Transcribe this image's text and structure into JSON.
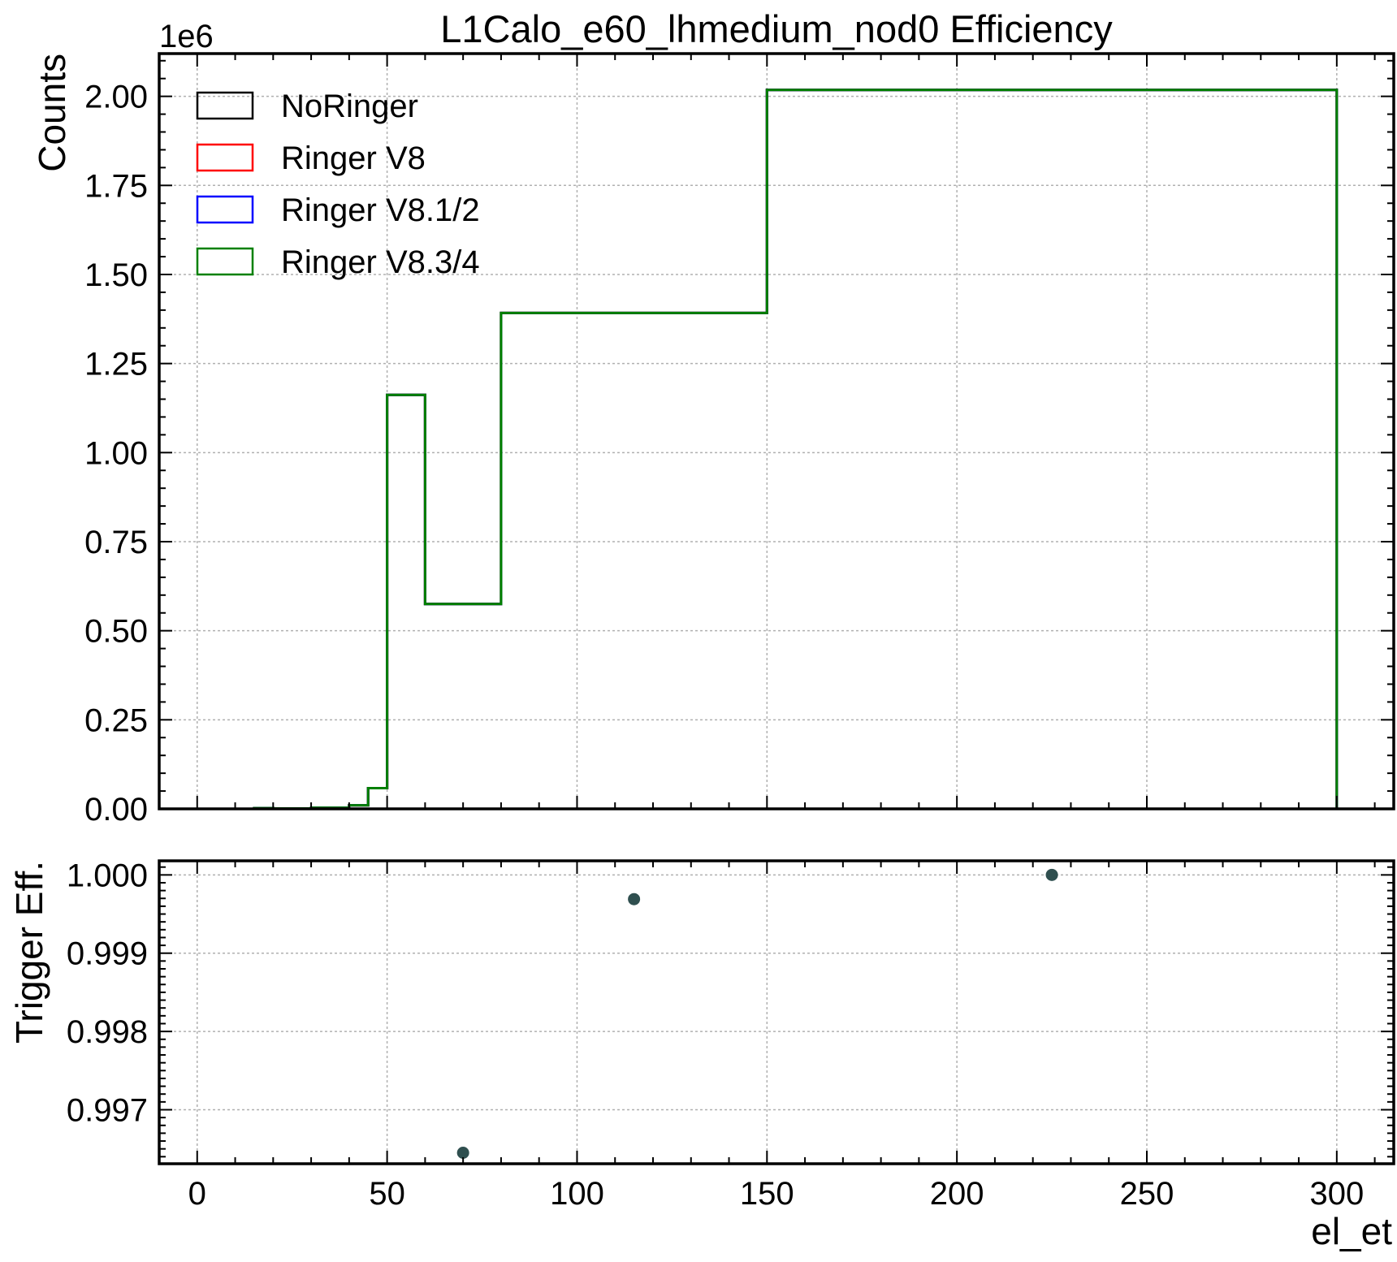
{
  "chart_data": [
    {
      "type": "line",
      "subtype": "step-histogram",
      "title": "L1Calo_e60_lhmedium_nod0 Efficiency",
      "ylabel": "Counts",
      "xlabel": "",
      "y_offset_label": "1e6",
      "xlim": [
        -10,
        315
      ],
      "ylim": [
        0,
        2.12
      ],
      "y_scale": 1000000,
      "xticks": [
        0,
        50,
        100,
        150,
        200,
        250,
        300
      ],
      "yticks": [
        0.0,
        0.25,
        0.5,
        0.75,
        1.0,
        1.25,
        1.5,
        1.75,
        2.0
      ],
      "ytick_labels": [
        "0.00",
        "0.25",
        "0.50",
        "0.75",
        "1.00",
        "1.25",
        "1.50",
        "1.75",
        "2.00"
      ],
      "grid": true,
      "legend_position": "top-left",
      "bin_edges": [
        15,
        20,
        30,
        40,
        45,
        50,
        60,
        80,
        150,
        300
      ],
      "series": [
        {
          "name": "NoRinger",
          "color": "#000000",
          "values": [
            0.002,
            0.001,
            0.003,
            0.01,
            0.058,
            1.162,
            0.575,
            1.392,
            2.018
          ]
        },
        {
          "name": "Ringer V8",
          "color": "#ff0000",
          "values": [
            0.002,
            0.001,
            0.003,
            0.01,
            0.058,
            1.162,
            0.575,
            1.392,
            2.018
          ]
        },
        {
          "name": "Ringer V8.1/2",
          "color": "#0000ff",
          "values": [
            0.002,
            0.001,
            0.003,
            0.01,
            0.058,
            1.162,
            0.575,
            1.392,
            2.018
          ]
        },
        {
          "name": "Ringer V8.3/4",
          "color": "#008000",
          "values": [
            0.002,
            0.001,
            0.003,
            0.01,
            0.058,
            1.162,
            0.575,
            1.392,
            2.018
          ]
        }
      ]
    },
    {
      "type": "scatter",
      "ylabel": "Trigger Eff.",
      "xlabel": "el_et",
      "xlim": [
        -10,
        315
      ],
      "ylim": [
        0.99631,
        1.00018
      ],
      "xticks": [
        0,
        50,
        100,
        150,
        200,
        250,
        300
      ],
      "xtick_labels": [
        "0",
        "50",
        "100",
        "150",
        "200",
        "250",
        "300"
      ],
      "yticks": [
        0.997,
        0.998,
        0.999,
        1.0
      ],
      "ytick_labels": [
        "0.997",
        "0.998",
        "0.999",
        "1.000"
      ],
      "grid": true,
      "marker_color": "#2f4f4f",
      "points": [
        {
          "x": 70,
          "y": 0.99645
        },
        {
          "x": 115,
          "y": 0.99969
        },
        {
          "x": 225,
          "y": 1.0
        }
      ]
    }
  ]
}
